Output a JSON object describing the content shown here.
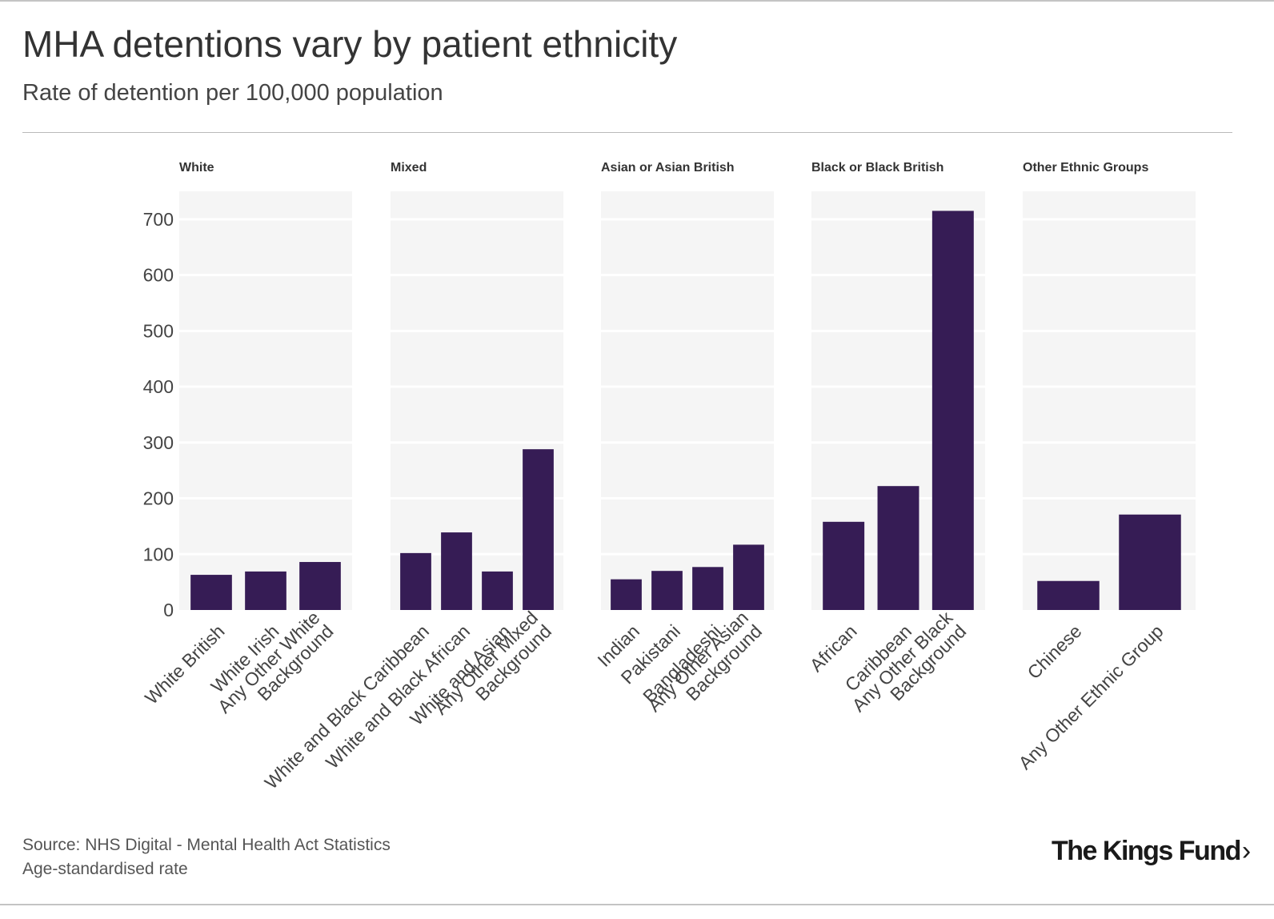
{
  "header": {
    "title": "MHA detentions vary by patient ethnicity",
    "subtitle": "Rate of detention per 100,000 population"
  },
  "footer": {
    "source": "Source: NHS Digital - Mental Health Act Statistics",
    "note": "Age-standardised rate"
  },
  "logo": {
    "text": "The Kings Fund",
    "chevron": "›"
  },
  "colors": {
    "bar": "#361c55",
    "panel_background": "#f5f5f5",
    "gridline": "#ffffff",
    "text": "#333333"
  },
  "chart_data": {
    "type": "bar",
    "title": "MHA detentions vary by patient ethnicity",
    "subtitle": "Rate of detention per 100,000 population",
    "ylabel": "",
    "xlabel": "",
    "ylim": [
      0,
      750
    ],
    "yticks": [
      0,
      100,
      200,
      300,
      400,
      500,
      600,
      700
    ],
    "grid": true,
    "facets": [
      {
        "name": "White",
        "categories": [
          {
            "label": "White British",
            "lines": [
              "White British"
            ],
            "value": 63
          },
          {
            "label": "White Irish",
            "lines": [
              "White Irish"
            ],
            "value": 69
          },
          {
            "label": "Any Other White Background",
            "lines": [
              "Any Other White",
              "Background"
            ],
            "value": 86
          }
        ]
      },
      {
        "name": "Mixed",
        "categories": [
          {
            "label": "White and Black Caribbean",
            "lines": [
              "White and Black Caribbean"
            ],
            "value": 102
          },
          {
            "label": "White and Black African",
            "lines": [
              "White and Black African"
            ],
            "value": 139
          },
          {
            "label": "White and Asian",
            "lines": [
              "White and Asian"
            ],
            "value": 69
          },
          {
            "label": "Any Other Mixed Background",
            "lines": [
              "Any Other Mixed",
              "Background"
            ],
            "value": 288
          }
        ]
      },
      {
        "name": "Asian or Asian British",
        "categories": [
          {
            "label": "Indian",
            "lines": [
              "Indian"
            ],
            "value": 55
          },
          {
            "label": "Pakistani",
            "lines": [
              "Pakistani"
            ],
            "value": 70
          },
          {
            "label": "Bangladeshi",
            "lines": [
              "Bangladeshi"
            ],
            "value": 77
          },
          {
            "label": "Any Other Asian Background",
            "lines": [
              "Any Other Asian",
              "Background"
            ],
            "value": 117
          }
        ]
      },
      {
        "name": "Black or Black British",
        "categories": [
          {
            "label": "African",
            "lines": [
              "African"
            ],
            "value": 158
          },
          {
            "label": "Caribbean",
            "lines": [
              "Caribbean"
            ],
            "value": 222
          },
          {
            "label": "Any Other Black Background",
            "lines": [
              "Any Other Black",
              "Background"
            ],
            "value": 715
          }
        ]
      },
      {
        "name": "Other Ethnic Groups",
        "categories": [
          {
            "label": "Chinese",
            "lines": [
              "Chinese"
            ],
            "value": 52
          },
          {
            "label": "Any Other Ethnic Group",
            "lines": [
              "Any Other Ethnic Group"
            ],
            "value": 171
          }
        ]
      }
    ]
  }
}
